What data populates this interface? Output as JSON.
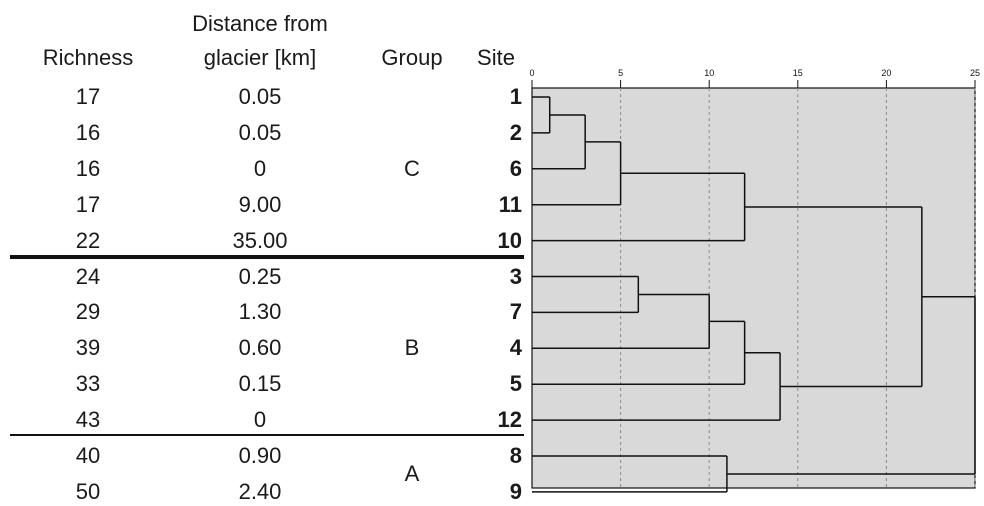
{
  "headers": {
    "richness": "Richness",
    "distance_line1": "Distance from",
    "distance_line2": "glacier [km]",
    "group": "Group",
    "site": "Site"
  },
  "rows": [
    {
      "richness": "17",
      "distance": "0.05",
      "site": "1"
    },
    {
      "richness": "16",
      "distance": "0.05",
      "site": "2"
    },
    {
      "richness": "16",
      "distance": "0",
      "site": "6"
    },
    {
      "richness": "17",
      "distance": "9.00",
      "site": "11"
    },
    {
      "richness": "22",
      "distance": "35.00",
      "site": "10"
    },
    {
      "richness": "24",
      "distance": "0.25",
      "site": "3"
    },
    {
      "richness": "29",
      "distance": "1.30",
      "site": "7"
    },
    {
      "richness": "39",
      "distance": "0.60",
      "site": "4"
    },
    {
      "richness": "33",
      "distance": "0.15",
      "site": "5"
    },
    {
      "richness": "43",
      "distance": "0",
      "site": "12"
    },
    {
      "richness": "40",
      "distance": "0.90",
      "site": "8"
    },
    {
      "richness": "50",
      "distance": "2.40",
      "site": "9"
    }
  ],
  "groups": [
    {
      "label": "C",
      "rows": [
        0,
        4
      ]
    },
    {
      "label": "B",
      "rows": [
        5,
        9
      ]
    },
    {
      "label": "A",
      "rows": [
        10,
        11
      ]
    }
  ],
  "chart_data": {
    "type": "dendrogram",
    "axis": {
      "min": 0,
      "max": 25,
      "ticks": [
        "0",
        "5",
        "10",
        "15",
        "20",
        "25"
      ],
      "grid": true
    },
    "leaves": [
      "1",
      "2",
      "6",
      "11",
      "10",
      "3",
      "7",
      "4",
      "5",
      "12",
      "8",
      "9"
    ],
    "merges": [
      {
        "a": "1",
        "b": "2",
        "height": 1
      },
      {
        "a": "1+2",
        "b": "6",
        "height": 3
      },
      {
        "a": "1+2+6",
        "b": "11",
        "height": 5
      },
      {
        "a": "1+2+6+11",
        "b": "10",
        "height": 12
      },
      {
        "a": "3",
        "b": "7",
        "height": 6
      },
      {
        "a": "3+7",
        "b": "4",
        "height": 10
      },
      {
        "a": "3+7+4",
        "b": "5",
        "height": 12
      },
      {
        "a": "3+7+4+5",
        "b": "12",
        "height": 14
      },
      {
        "a": "8",
        "b": "9",
        "height": 11
      },
      {
        "a": "C",
        "b": "B",
        "height": 22
      },
      {
        "a": "C+B",
        "b": "A",
        "height": 25
      }
    ],
    "background": "#d9d9d9"
  }
}
